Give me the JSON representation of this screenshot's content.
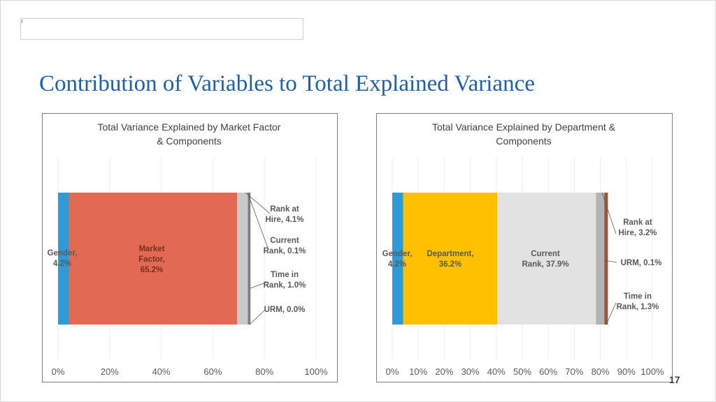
{
  "slide": {
    "title": "Contribution of Variables to Total Explained Variance",
    "page_number": "17"
  },
  "chart_data": [
    {
      "type": "bar",
      "orientation": "horizontal",
      "stacked": true,
      "title": "Total Variance Explained by Market Factor & Components",
      "title_lines": [
        "Total Variance Explained by Market Factor",
        "& Components"
      ],
      "x_range": [
        0,
        100
      ],
      "tick_labels": [
        "0%",
        "20%",
        "40%",
        "60%",
        "80%",
        "100%"
      ],
      "grid": true,
      "series": [
        {
          "name": "Gender",
          "value": 4.2,
          "color": "#2e9ad6",
          "label_lines": [
            "Gender,",
            "4.2%"
          ],
          "label_color": "#595959"
        },
        {
          "name": "Market Factor",
          "value": 65.2,
          "color": "#e36a52",
          "label_lines": [
            "Market",
            "Factor,",
            "65.2%"
          ],
          "label_color": "#7a2d1e"
        },
        {
          "name": "Rank at Hire",
          "value": 4.1,
          "color": "#c9c9c9",
          "label_lines": [
            "Rank at",
            "Hire, 4.1%"
          ],
          "label_color": "#595959"
        },
        {
          "name": "Current Rank",
          "value": 0.1,
          "color": "#a6a6a6",
          "label_lines": [
            "Current",
            "Rank, 0.1%"
          ],
          "label_color": "#595959"
        },
        {
          "name": "Time in Rank",
          "value": 1.0,
          "color": "#7f7f7f",
          "label_lines": [
            "Time in",
            "Rank, 1.0%"
          ],
          "label_color": "#595959"
        },
        {
          "name": "URM",
          "value": 0.0,
          "color": "#404040",
          "label_lines": [
            "URM, 0.0%"
          ],
          "label_color": "#595959"
        }
      ]
    },
    {
      "type": "bar",
      "orientation": "horizontal",
      "stacked": true,
      "title": "Total Variance Explained by Department & Components",
      "title_lines": [
        "Total Variance Explained by Department &",
        "Components"
      ],
      "x_range": [
        0,
        100
      ],
      "tick_labels": [
        "0%",
        "10%",
        "20%",
        "30%",
        "40%",
        "50%",
        "60%",
        "70%",
        "80%",
        "90%",
        "100%"
      ],
      "grid": true,
      "series": [
        {
          "name": "Gender",
          "value": 4.2,
          "color": "#2e9ad6",
          "label_lines": [
            "Gender,",
            "4.2%"
          ],
          "label_color": "#595959"
        },
        {
          "name": "Department",
          "value": 36.2,
          "color": "#ffc000",
          "label_lines": [
            "Department,",
            "36.2%"
          ],
          "label_color": "#595959"
        },
        {
          "name": "Current Rank",
          "value": 37.9,
          "color": "#e2e2e2",
          "label_lines": [
            "Current",
            "Rank, 37.9%"
          ],
          "label_color": "#595959"
        },
        {
          "name": "Rank at Hire",
          "value": 3.2,
          "color": "#b4b4b4",
          "label_lines": [
            "Rank at",
            "Hire, 3.2%"
          ],
          "label_color": "#595959"
        },
        {
          "name": "URM",
          "value": 0.1,
          "color": "#7f7f7f",
          "label_lines": [
            "URM, 0.1%"
          ],
          "label_color": "#595959"
        },
        {
          "name": "Time in Rank",
          "value": 1.3,
          "color": "#a0523a",
          "label_lines": [
            "Time in",
            "Rank, 1.3%"
          ],
          "label_color": "#595959"
        }
      ]
    }
  ]
}
